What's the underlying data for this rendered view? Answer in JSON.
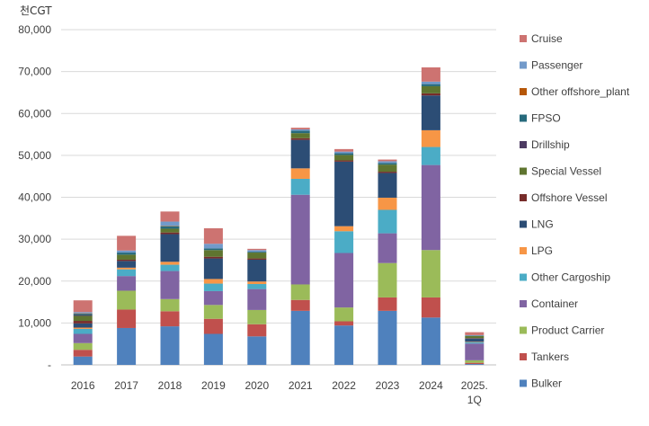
{
  "unit_label": "천CGT",
  "chart_data": {
    "type": "bar",
    "stacked": true,
    "title": "",
    "xlabel": "",
    "ylabel": "천CGT",
    "ylim": [
      0,
      80000
    ],
    "yticks": [
      "-",
      "10,000",
      "20,000",
      "30,000",
      "40,000",
      "50,000",
      "60,000",
      "70,000",
      "80,000"
    ],
    "categories": [
      "2016",
      "2017",
      "2018",
      "2019",
      "2020",
      "2021",
      "2022",
      "2023",
      "2024",
      "2025.1Q"
    ],
    "category_lines": [
      [
        "2016"
      ],
      [
        "2017"
      ],
      [
        "2018"
      ],
      [
        "2019"
      ],
      [
        "2020"
      ],
      [
        "2021"
      ],
      [
        "2022"
      ],
      [
        "2023"
      ],
      [
        "2024"
      ],
      [
        "2025.",
        "1Q"
      ]
    ],
    "legend_position": "right",
    "series": [
      {
        "name": "Bulker",
        "color": "#4f81bd",
        "values": [
          2000,
          8800,
          9200,
          7400,
          6800,
          12900,
          9400,
          12900,
          11300,
          200
        ]
      },
      {
        "name": "Tankers",
        "color": "#c0504d",
        "values": [
          1600,
          4400,
          3600,
          3600,
          2900,
          2600,
          1000,
          3200,
          4800,
          300
        ]
      },
      {
        "name": "Product Carrier",
        "color": "#9bbb59",
        "values": [
          1600,
          4500,
          2900,
          3300,
          3400,
          3700,
          3300,
          8200,
          11300,
          600
        ]
      },
      {
        "name": "Container",
        "color": "#8064a2",
        "values": [
          2200,
          3500,
          6700,
          3300,
          5000,
          21400,
          13000,
          7100,
          20300,
          4000
        ]
      },
      {
        "name": "Other Cargoship",
        "color": "#4bacc6",
        "values": [
          1200,
          1600,
          1500,
          1800,
          1200,
          3800,
          5200,
          5600,
          4300,
          300
        ]
      },
      {
        "name": "LPG",
        "color": "#f79646",
        "values": [
          300,
          400,
          700,
          1100,
          600,
          2500,
          1200,
          2900,
          4000,
          100
        ]
      },
      {
        "name": "LNG",
        "color": "#2c4d75",
        "values": [
          1000,
          1600,
          6600,
          4900,
          5200,
          6800,
          15400,
          5900,
          8300,
          800
        ]
      },
      {
        "name": "Offshore Vessel",
        "color": "#772c2a",
        "values": [
          600,
          300,
          400,
          400,
          300,
          400,
          300,
          300,
          500,
          100
        ]
      },
      {
        "name": "Special Vessel",
        "color": "#5f7530",
        "values": [
          1200,
          1200,
          900,
          1600,
          1400,
          1200,
          1300,
          1700,
          1700,
          500
        ]
      },
      {
        "name": "Drillship",
        "color": "#4d3b62",
        "values": [
          200,
          0,
          0,
          0,
          0,
          0,
          0,
          0,
          0,
          0
        ]
      },
      {
        "name": "FPSO",
        "color": "#276a7c",
        "values": [
          300,
          500,
          600,
          400,
          200,
          600,
          400,
          400,
          500,
          100
        ]
      },
      {
        "name": "Other offshore_plant",
        "color": "#b65708",
        "values": [
          100,
          0,
          100,
          0,
          0,
          0,
          0,
          0,
          0,
          0
        ]
      },
      {
        "name": "Passenger",
        "color": "#729aca",
        "values": [
          300,
          500,
          1000,
          1100,
          400,
          300,
          400,
          400,
          600,
          100
        ]
      },
      {
        "name": "Cruise",
        "color": "#cd7371",
        "values": [
          2800,
          3500,
          2400,
          3700,
          300,
          400,
          600,
          400,
          3400,
          700
        ]
      }
    ]
  }
}
